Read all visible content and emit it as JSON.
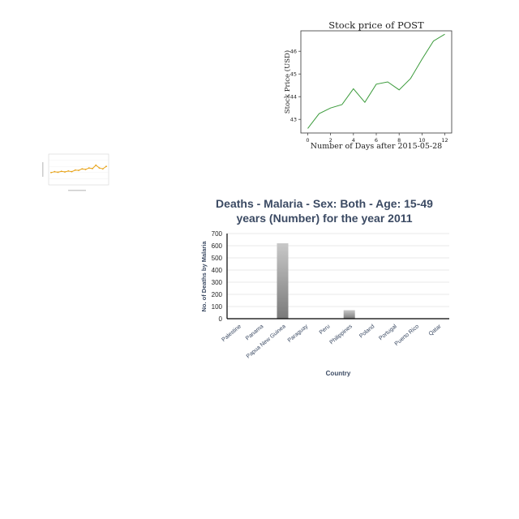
{
  "chart_data": [
    {
      "type": "line",
      "title": "Stock price of POST",
      "xlabel": "Number of Days after 2015-05-28",
      "ylabel": "Stock Price (USD)",
      "x": [
        0,
        1,
        2,
        3,
        4,
        5,
        6,
        7,
        8,
        9,
        10,
        11,
        12
      ],
      "series": [
        {
          "values": [
            42.6,
            43.25,
            43.5,
            43.65,
            44.35,
            43.75,
            44.55,
            44.65,
            44.3,
            44.8,
            45.65,
            46.45,
            46.75
          ]
        }
      ],
      "xticks": [
        "0",
        "2",
        "4",
        "6",
        "8",
        "10",
        "12"
      ],
      "yticks": [
        "43",
        "44",
        "45",
        "46"
      ],
      "xlim": [
        -0.6,
        12.6
      ],
      "ylim": [
        42.4,
        46.9
      ],
      "color": "#3a9a3a",
      "grid": false
    },
    {
      "type": "line",
      "title": "",
      "xlabel": "",
      "ylabel": "",
      "series": [
        {
          "values": [
            0.4,
            0.43,
            0.41,
            0.44,
            0.42,
            0.45,
            0.43,
            0.48,
            0.47,
            0.52,
            0.5,
            0.55,
            0.53,
            0.64,
            0.55,
            0.52,
            0.6
          ]
        }
      ],
      "ylim": [
        0,
        1
      ],
      "color": "#e8a317",
      "grid": true
    },
    {
      "type": "bar",
      "title": "Deaths - Malaria - Sex: Both - Age: 15-49 years (Number) for the year 2011",
      "title_lines": [
        "Deaths - Malaria - Sex: Both - Age: 15-49",
        "years (Number) for the year 2011"
      ],
      "xlabel": "Country",
      "ylabel": "No. of Deaths by Malaria",
      "categories": [
        "Palestine",
        "Panama",
        "Papua New Guinea",
        "Paraguay",
        "Peru",
        "Philippines",
        "Poland",
        "Portugal",
        "Puerto Rico",
        "Qatar"
      ],
      "values": [
        0,
        0,
        620,
        0,
        0,
        70,
        0,
        0,
        0,
        0
      ],
      "yticks": [
        "0",
        "100",
        "200",
        "300",
        "400",
        "500",
        "600",
        "700"
      ],
      "ylim": [
        0,
        700
      ],
      "grid": true,
      "title_color": "#3b4a63"
    }
  ]
}
